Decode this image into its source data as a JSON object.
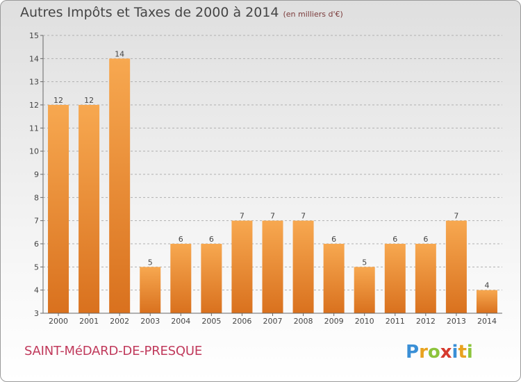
{
  "header": {
    "title": "Autres Impôts et Taxes de 2000 à 2014",
    "subtitle": "(en milliers d'€)"
  },
  "footer": {
    "place_name": "SAINT-MéDARD-DE-PRESQUE",
    "logo_text": "Proxiti"
  },
  "colors": {
    "bar_top": "#f7a850",
    "bar_bottom": "#d9711e",
    "axis": "#666666",
    "grid": "#b0b0b0",
    "place": "#c0395b"
  },
  "chart_data": {
    "type": "bar",
    "title": "Autres Impôts et Taxes de 2000 à 2014",
    "subtitle": "(en milliers d'€)",
    "categories": [
      "2000",
      "2001",
      "2002",
      "2003",
      "2004",
      "2005",
      "2006",
      "2007",
      "2008",
      "2009",
      "2010",
      "2011",
      "2012",
      "2013",
      "2014"
    ],
    "values": [
      12,
      12,
      14,
      5,
      6,
      6,
      7,
      7,
      7,
      6,
      5,
      6,
      6,
      7,
      4
    ],
    "ylim": [
      3,
      15
    ],
    "yticks": [
      3,
      4,
      5,
      6,
      7,
      8,
      9,
      10,
      11,
      12,
      13,
      14,
      15
    ],
    "grid": "horizontal dashed",
    "legend": "none"
  }
}
